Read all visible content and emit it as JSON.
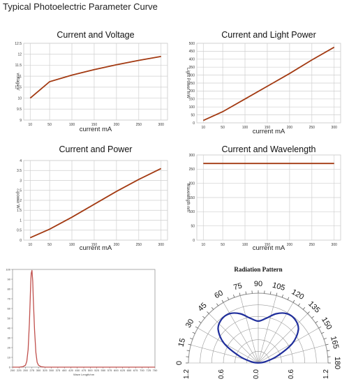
{
  "page": {
    "title": "Typical Photoelectric Parameter Curve"
  },
  "colors": {
    "line": "#a33a12",
    "grid": "#cfcfcf",
    "spectrum": "#c0504d",
    "polar": "#1f2e9c",
    "polarGrid": "#9a9a9a"
  },
  "chart_data": [
    {
      "type": "line",
      "title": "Current and Voltage",
      "xlabel": "current mA",
      "ylabel": "voltage V",
      "x_ticks": [
        10,
        50,
        100,
        150,
        200,
        250,
        300
      ],
      "y_ticks": [
        9,
        9.5,
        10,
        10.5,
        11,
        11.5,
        12,
        12.5
      ],
      "ylim": [
        9,
        12.5
      ],
      "x": [
        10,
        50,
        100,
        150,
        200,
        250,
        300
      ],
      "y": [
        10.0,
        10.75,
        11.05,
        11.3,
        11.52,
        11.72,
        11.9
      ]
    },
    {
      "type": "line",
      "title": "Current and Light Power",
      "xlabel": "current mA",
      "ylabel": "Light Power mW",
      "x_ticks": [
        10,
        50,
        100,
        150,
        200,
        250,
        300
      ],
      "y_ticks": [
        0,
        50,
        100,
        150,
        200,
        250,
        300,
        350,
        400,
        450,
        500
      ],
      "ylim": [
        0,
        500
      ],
      "x": [
        10,
        50,
        100,
        150,
        200,
        250,
        300
      ],
      "y": [
        15,
        70,
        150,
        230,
        310,
        395,
        475
      ]
    },
    {
      "type": "line",
      "title": "Current and Power",
      "xlabel": "current mA",
      "ylabel": "power W",
      "x_ticks": [
        10,
        50,
        100,
        150,
        200,
        250,
        300
      ],
      "y_ticks": [
        0,
        0.5,
        1,
        1.5,
        2,
        2.5,
        3,
        3.5,
        4
      ],
      "ylim": [
        0,
        4
      ],
      "x": [
        10,
        50,
        100,
        150,
        200,
        250,
        300
      ],
      "y": [
        0.12,
        0.55,
        1.15,
        1.8,
        2.45,
        3.05,
        3.6
      ]
    },
    {
      "type": "line",
      "title": "Current and Wavelength",
      "xlabel": "current mA",
      "ylabel": "Wavelength nm",
      "x_ticks": [
        10,
        50,
        100,
        150,
        200,
        250,
        300
      ],
      "y_ticks": [
        0,
        50,
        100,
        150,
        200,
        250,
        300
      ],
      "ylim": [
        0,
        300
      ],
      "x": [
        10,
        300
      ],
      "y": [
        270,
        270
      ]
    },
    {
      "type": "line",
      "title": "",
      "xlabel": "Wave Length/nm",
      "ylabel": "",
      "x_ticks": [
        200,
        225,
        250,
        275,
        300,
        325,
        350,
        375,
        400,
        425,
        450,
        475,
        500,
        525,
        550,
        575,
        600,
        625,
        650,
        675,
        700,
        725,
        750
      ],
      "y_ticks": [
        0,
        10,
        20,
        30,
        40,
        50,
        60,
        70,
        80,
        90,
        100
      ],
      "ylim": [
        0,
        100
      ],
      "x": [
        200,
        225,
        240,
        250,
        255,
        260,
        265,
        268,
        270,
        272,
        275,
        278,
        280,
        285,
        290,
        295,
        300,
        310,
        325,
        350,
        400,
        500,
        750
      ],
      "y": [
        0,
        0,
        0.5,
        2,
        6,
        18,
        45,
        68,
        86,
        96,
        99,
        88,
        70,
        38,
        15,
        5,
        2,
        0.5,
        0,
        0,
        0,
        0,
        0
      ]
    },
    {
      "type": "polar",
      "title": "Radiation Pattern",
      "angle_ticks": [
        0,
        15,
        30,
        45,
        60,
        75,
        90,
        105,
        120,
        135,
        150,
        165,
        180
      ],
      "radial_ticks": [
        "1.2",
        "0.6",
        "0.0",
        "0.6",
        "1.2"
      ],
      "rmax": 1.2,
      "angles": [
        0,
        10,
        20,
        30,
        40,
        50,
        60,
        70,
        80,
        90,
        100,
        110,
        120,
        130,
        140,
        150,
        160,
        170,
        180
      ],
      "r": [
        0,
        0.12,
        0.35,
        0.68,
        0.9,
        0.98,
        0.98,
        0.9,
        0.78,
        0.72,
        0.78,
        0.9,
        0.98,
        0.98,
        0.9,
        0.68,
        0.35,
        0.12,
        0
      ]
    }
  ]
}
